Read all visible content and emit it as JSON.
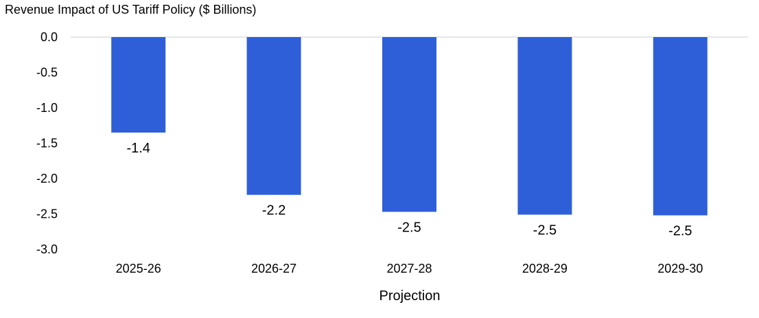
{
  "chart_data": {
    "type": "bar",
    "title": "Revenue Impact of US Tariff Policy ($ Billions)",
    "xlabel": "Projection",
    "ylabel": "",
    "categories": [
      "2025-26",
      "2026-27",
      "2027-28",
      "2028-29",
      "2029-30"
    ],
    "values": [
      -1.35,
      -2.23,
      -2.47,
      -2.51,
      -2.52
    ],
    "data_labels": [
      "-1.4",
      "-2.2",
      "-2.5",
      "-2.5",
      "-2.5"
    ],
    "y_ticks": [
      "0.0",
      "-0.5",
      "-1.0",
      "-1.5",
      "-2.0",
      "-2.5",
      "-3.0"
    ],
    "y_tick_values": [
      0,
      -0.5,
      -1,
      -1.5,
      -2,
      -2.5,
      -3
    ],
    "ylim": [
      -3,
      0
    ],
    "bar_color": "#2f5fd8",
    "grid": false,
    "legend": "none"
  }
}
